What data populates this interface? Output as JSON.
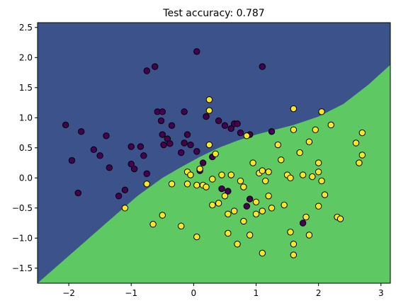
{
  "chart_data": {
    "type": "scatter",
    "title": "Test accuracy: 0.787",
    "xlabel": "",
    "ylabel": "",
    "xlim": [
      -2.5,
      3.15
    ],
    "ylim": [
      -1.75,
      2.58
    ],
    "x_ticks": [
      -2,
      -1,
      0,
      1,
      2,
      3
    ],
    "y_ticks": [
      -1.5,
      -1.0,
      -0.5,
      0.0,
      0.5,
      1.0,
      1.5,
      2.0,
      2.5
    ],
    "grid": false,
    "legend": "none",
    "colors": {
      "region_class0": "#3b528b",
      "region_class1": "#5ec962",
      "point_class0": "#440154",
      "point_class1": "#fde725",
      "point_edge": "#000000"
    },
    "decision_boundary": {
      "x": [
        -2.5,
        -1.4,
        -0.9,
        -0.5,
        -0.2,
        0.1,
        0.4,
        0.7,
        1.0,
        1.3,
        1.6,
        2.0,
        2.4,
        2.8,
        3.15
      ],
      "y": [
        -1.75,
        -0.75,
        -0.3,
        0.0,
        0.18,
        0.35,
        0.5,
        0.62,
        0.72,
        0.8,
        0.88,
        1.02,
        1.23,
        1.55,
        1.88
      ]
    },
    "series": [
      {
        "class": 0,
        "points": [
          [
            -2.05,
            0.88
          ],
          [
            -1.95,
            0.29
          ],
          [
            -1.85,
            -0.25
          ],
          [
            -1.8,
            0.77
          ],
          [
            -1.6,
            0.47
          ],
          [
            -1.5,
            0.37
          ],
          [
            -1.4,
            0.7
          ],
          [
            -1.35,
            0.17
          ],
          [
            -1.2,
            -0.3
          ],
          [
            -1.1,
            -0.2
          ],
          [
            -1.0,
            0.52
          ],
          [
            -1.0,
            0.23
          ],
          [
            -0.95,
            0.15
          ],
          [
            -0.85,
            0.52
          ],
          [
            -0.8,
            0.37
          ],
          [
            -0.75,
            0.07
          ],
          [
            -0.75,
            1.78
          ],
          [
            -0.62,
            1.85
          ],
          [
            -0.58,
            1.1
          ],
          [
            -0.52,
            0.95
          ],
          [
            -0.5,
            1.1
          ],
          [
            -0.5,
            0.72
          ],
          [
            -0.48,
            0.55
          ],
          [
            -0.42,
            0.65
          ],
          [
            -0.38,
            0.57
          ],
          [
            -0.35,
            0.87
          ],
          [
            -0.2,
            0.42
          ],
          [
            -0.15,
            1.1
          ],
          [
            -0.15,
            0.58
          ],
          [
            -0.1,
            0.72
          ],
          [
            -0.05,
            0.55
          ],
          [
            0.05,
            0.44
          ],
          [
            0.05,
            2.1
          ],
          [
            0.1,
            0.12
          ],
          [
            0.15,
            0.25
          ],
          [
            0.2,
            1.02
          ],
          [
            0.3,
            0.35
          ],
          [
            0.4,
            0.95
          ],
          [
            0.45,
            -0.18
          ],
          [
            0.5,
            0.87
          ],
          [
            0.55,
            -0.22
          ],
          [
            0.6,
            0.82
          ],
          [
            0.65,
            0.9
          ],
          [
            0.7,
            0.9
          ],
          [
            0.75,
            0.75
          ],
          [
            0.9,
            0.72
          ],
          [
            1.1,
            1.85
          ],
          [
            1.25,
            0.77
          ],
          [
            0.85,
            -0.47
          ],
          [
            0.9,
            -0.35
          ],
          [
            1.75,
            -0.75
          ]
        ]
      },
      {
        "class": 1,
        "points": [
          [
            -1.1,
            -0.5
          ],
          [
            -0.75,
            -0.1
          ],
          [
            -0.65,
            -0.77
          ],
          [
            -0.5,
            -0.62
          ],
          [
            -0.35,
            -0.1
          ],
          [
            -0.2,
            -0.8
          ],
          [
            -0.1,
            0.1
          ],
          [
            -0.1,
            -0.1
          ],
          [
            -0.05,
            0.05
          ],
          [
            0.05,
            -0.12
          ],
          [
            0.05,
            -0.98
          ],
          [
            0.1,
            0.15
          ],
          [
            0.15,
            -0.12
          ],
          [
            0.2,
            -0.15
          ],
          [
            0.25,
            1.3
          ],
          [
            0.25,
            1.12
          ],
          [
            0.25,
            0.55
          ],
          [
            0.3,
            -0.02
          ],
          [
            0.3,
            -0.45
          ],
          [
            0.35,
            0.4
          ],
          [
            0.4,
            -0.42
          ],
          [
            0.45,
            0.05
          ],
          [
            0.5,
            -0.3
          ],
          [
            0.55,
            -0.6
          ],
          [
            0.55,
            -0.92
          ],
          [
            0.6,
            0.05
          ],
          [
            0.65,
            -0.55
          ],
          [
            0.7,
            -1.1
          ],
          [
            0.75,
            -0.05
          ],
          [
            0.8,
            -0.15
          ],
          [
            0.8,
            -0.72
          ],
          [
            0.85,
            0.7
          ],
          [
            0.9,
            -0.95
          ],
          [
            0.95,
            0.25
          ],
          [
            1.0,
            -0.4
          ],
          [
            1.0,
            -0.6
          ],
          [
            1.05,
            0.08
          ],
          [
            1.1,
            0.12
          ],
          [
            1.1,
            -0.55
          ],
          [
            1.1,
            -1.25
          ],
          [
            1.15,
            -0.05
          ],
          [
            1.2,
            0.1
          ],
          [
            1.2,
            -0.3
          ],
          [
            1.25,
            -0.5
          ],
          [
            1.35,
            0.55
          ],
          [
            1.4,
            0.3
          ],
          [
            1.45,
            -0.45
          ],
          [
            1.5,
            0.05
          ],
          [
            1.55,
            0.0
          ],
          [
            1.55,
            -0.9
          ],
          [
            1.6,
            1.15
          ],
          [
            1.6,
            0.8
          ],
          [
            1.6,
            -1.1
          ],
          [
            1.6,
            -1.28
          ],
          [
            1.7,
            0.42
          ],
          [
            1.75,
            0.05
          ],
          [
            1.8,
            -0.65
          ],
          [
            1.85,
            0.6
          ],
          [
            1.85,
            -0.95
          ],
          [
            1.9,
            0.02
          ],
          [
            1.95,
            0.8
          ],
          [
            2.0,
            0.1
          ],
          [
            2.0,
            -0.47
          ],
          [
            2.05,
            1.1
          ],
          [
            2.05,
            -0.05
          ],
          [
            2.1,
            -0.28
          ],
          [
            2.2,
            0.88
          ],
          [
            2.3,
            -0.65
          ],
          [
            2.35,
            -0.68
          ],
          [
            2.6,
            0.58
          ],
          [
            2.65,
            0.25
          ],
          [
            2.7,
            0.38
          ],
          [
            2.7,
            0.75
          ],
          [
            2.0,
            0.25
          ]
        ]
      }
    ]
  }
}
